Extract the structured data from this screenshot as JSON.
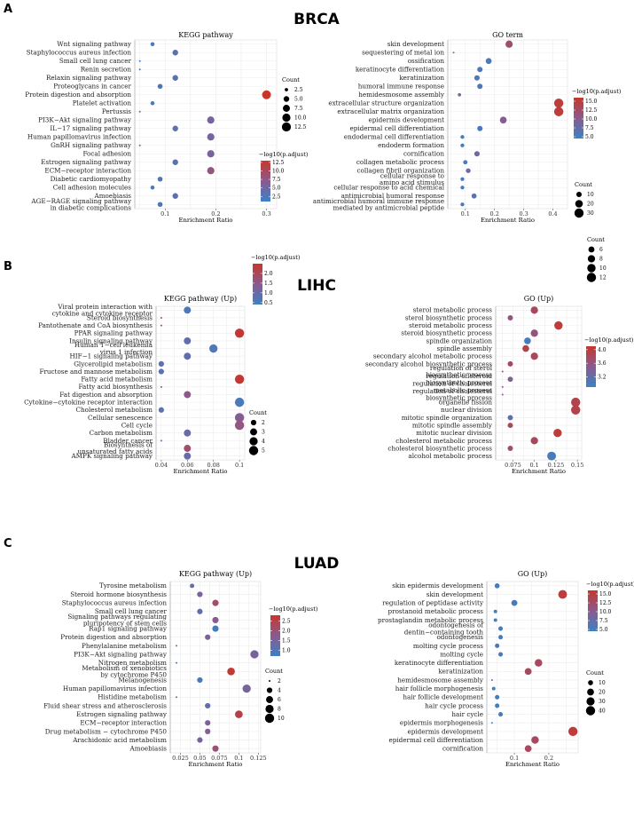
{
  "panels": [
    {
      "letter": "A",
      "title": "BRCA"
    },
    {
      "letter": "B",
      "title": "LIHC"
    },
    {
      "letter": "C",
      "title": "LUAD"
    }
  ],
  "legend": {
    "color_title": "−log10(p.adjust)",
    "size_title": "Count"
  },
  "colors": {
    "low": "#3a82c4",
    "mid": "#8a5a8f",
    "high": "#c8362a"
  },
  "chart_data": [
    {
      "type": "scatter",
      "panel": "A",
      "title": "KEGG pathway",
      "xlabel": "Enrichment Ratio",
      "xlim": [
        0.04,
        0.32
      ],
      "xticks": [
        0.1,
        0.2,
        0.3
      ],
      "categories": [
        "Wnt signaling pathway",
        "Staphylococcus aureus infection",
        "Small cell lung cancer",
        "Renin secretion",
        "Relaxin signaling pathway",
        "Proteoglycans in cancer",
        "Protein digestion and absorption",
        "Platelet activation",
        "Pertussis",
        "PI3K−Akt signaling pathway",
        "IL−17 signaling pathway",
        "Human papillomavirus infection",
        "GnRH signaling pathway",
        "Focal adhesion",
        "Estrogen signaling pathway",
        "ECM−receptor interaction",
        "Diabetic cardiomyopathy",
        "Cell adhesion molecules",
        "Amoebiasis",
        "AGE−RAGE signaling pathway in diabetic complications"
      ],
      "x": [
        0.075,
        0.12,
        0.05,
        0.05,
        0.12,
        0.09,
        0.3,
        0.075,
        0.05,
        0.19,
        0.12,
        0.19,
        0.05,
        0.19,
        0.12,
        0.19,
        0.09,
        0.075,
        0.12,
        0.09
      ],
      "count": [
        3,
        5,
        2,
        2,
        5,
        4,
        12,
        3,
        2,
        8,
        5,
        8,
        2,
        8,
        5,
        8,
        4,
        3,
        5,
        4
      ],
      "color_value": [
        2.0,
        3.5,
        1.2,
        1.2,
        3.5,
        2.8,
        13.0,
        2.0,
        1.2,
        5.5,
        3.5,
        5.5,
        1.2,
        5.5,
        3.5,
        8.0,
        2.8,
        2.0,
        3.5,
        2.8
      ],
      "size_legend": {
        "values": [
          2.5,
          5.0,
          7.5,
          10.0,
          12.5
        ],
        "labels": [
          "2.5",
          "5.0",
          "7.5",
          "10.0",
          "12.5"
        ],
        "range": [
          2,
          13
        ]
      },
      "color_legend": {
        "range": [
          1,
          13
        ],
        "ticks": [
          2.5,
          5.0,
          7.5,
          10.0,
          12.5
        ],
        "labels": [
          "2.5",
          "5.0",
          "7.5",
          "10.0",
          "12.5"
        ]
      }
    },
    {
      "type": "scatter",
      "panel": "A",
      "title": "GO term",
      "xlabel": "Enrichment Ratio",
      "xlim": [
        0.04,
        0.45
      ],
      "xticks": [
        0.1,
        0.2,
        0.3,
        0.4
      ],
      "categories": [
        "skin development",
        "sequestering of metal ion",
        "ossification",
        "keratinocyte differentiation",
        "keratinization",
        "humoral immune response",
        "hemidesmosome assembly",
        "extracellular structure organization",
        "extracellular matrix organization",
        "epidermis development",
        "epidermal cell differentiation",
        "endodermal cell differentiation",
        "endoderm formation",
        "cornification",
        "collagen metabolic process",
        "collagen fibril organization",
        "cellular response to amino acid stimulus",
        "cellular response to acid chemical",
        "antimicrobial humoral response",
        "antimicrobial humoral immune response mediated by antimicrobial peptide"
      ],
      "x": [
        0.25,
        0.06,
        0.18,
        0.15,
        0.14,
        0.15,
        0.08,
        0.42,
        0.42,
        0.23,
        0.15,
        0.09,
        0.09,
        0.14,
        0.1,
        0.11,
        0.09,
        0.09,
        0.13,
        0.09
      ],
      "count": [
        18,
        4,
        12,
        10,
        10,
        10,
        5,
        30,
        30,
        16,
        10,
        6,
        6,
        10,
        7,
        8,
        6,
        6,
        9,
        6
      ],
      "color_value": [
        12,
        5.5,
        6,
        6,
        6,
        6,
        8,
        15,
        15,
        10,
        5.5,
        5.5,
        5.5,
        8,
        5.5,
        8,
        5.5,
        5.5,
        7,
        6
      ],
      "size_legend": {
        "values": [
          10,
          20,
          30
        ],
        "labels": [
          "10",
          "20",
          "30"
        ],
        "range": [
          4,
          30
        ]
      },
      "color_legend": {
        "range": [
          4.5,
          16
        ],
        "ticks": [
          5.0,
          7.5,
          10.0,
          12.5,
          15.0
        ],
        "labels": [
          "5.0",
          "7.5",
          "10.0",
          "12.5",
          "15.0"
        ]
      }
    },
    {
      "type": "scatter",
      "panel": "B",
      "title": "KEGG pathway (Up)",
      "xlabel": "Enrichment Ratio",
      "xlim": [
        0.036,
        0.104
      ],
      "xticks": [
        0.04,
        0.06,
        0.08,
        0.1
      ],
      "categories": [
        "Viral protein interaction with cytokine and cytokine receptor",
        "Steroid biosynthesis",
        "Pantothenate and CoA biosynthesis",
        "PPAR signaling pathway",
        "Insulin signaling pathway",
        "Human T−cell leukemia virus 1 infection",
        "HIF−1 signaling pathway",
        "Glycerolipid metabolism",
        "Fructose and mannose metabolism",
        "Fatty acid metabolism",
        "Fatty acid biosynthesis",
        "Fat digestion and absorption",
        "Cytokine−cytokine receptor interaction",
        "Cholesterol metabolism",
        "Cellular senescence",
        "Cell cycle",
        "Carbon metabolism",
        "Bladder cancer",
        "Biosynthesis of unsaturated fatty acids",
        "AMPK signaling pathway"
      ],
      "x": [
        0.06,
        0.04,
        0.04,
        0.1,
        0.06,
        0.08,
        0.06,
        0.04,
        0.04,
        0.1,
        0.04,
        0.06,
        0.1,
        0.04,
        0.1,
        0.1,
        0.06,
        0.04,
        0.06,
        0.06
      ],
      "count": [
        3,
        1,
        1,
        5,
        3,
        4,
        3,
        2,
        2,
        5,
        1,
        3,
        5,
        2,
        5,
        5,
        3,
        1,
        3,
        3
      ],
      "color_value": [
        0.7,
        1.5,
        1.5,
        2.4,
        0.9,
        0.7,
        0.9,
        0.8,
        0.8,
        2.4,
        1.5,
        1.5,
        0.6,
        0.8,
        1.4,
        1.6,
        1.0,
        0.7,
        1.8,
        1.0
      ],
      "size_legend": {
        "values": [
          2,
          3,
          4,
          5
        ],
        "labels": [
          "2",
          "3",
          "4",
          "5"
        ],
        "range": [
          1,
          5
        ]
      },
      "color_legend": {
        "range": [
          0.4,
          2.5
        ],
        "ticks": [
          0.5,
          1.0,
          1.5,
          2.0
        ],
        "labels": [
          "0.5",
          "1.0",
          "1.5",
          "2.0"
        ]
      }
    },
    {
      "type": "scatter",
      "panel": "B",
      "title": "GO (Up)",
      "xlabel": "Enrichment Ratio",
      "xlim": [
        0.055,
        0.155
      ],
      "xticks": [
        0.075,
        0.1,
        0.125,
        0.15
      ],
      "categories": [
        "sterol metabolic process",
        "sterol biosynthetic process",
        "steroid metabolic process",
        "steroid biosynthetic process",
        "spindle organization",
        "spindle assembly",
        "secondary alcohol metabolic process",
        "secondary alcohol biosynthetic process",
        "regulation of sterol biosynthetic process",
        "regulation of steroid biosynthetic process",
        "regulation of cholesterol metabolic process",
        "regulation of cholesterol biosynthetic process",
        "organelle fission",
        "nuclear division",
        "mitotic spindle organization",
        "mitotic spindle assembly",
        "mitotic nuclear division",
        "cholesterol metabolic process",
        "cholesterol biosynthetic process",
        "alcohol metabolic process"
      ],
      "x": [
        0.1,
        0.072,
        0.128,
        0.1,
        0.092,
        0.09,
        0.1,
        0.072,
        0.063,
        0.072,
        0.063,
        0.063,
        0.148,
        0.148,
        0.072,
        0.072,
        0.127,
        0.1,
        0.072,
        0.12
      ],
      "count": [
        8,
        5,
        10,
        8,
        7,
        7,
        8,
        5,
        3,
        5,
        3,
        3,
        12,
        12,
        5,
        5,
        10,
        8,
        5,
        11
      ],
      "color_value": [
        3.8,
        3.6,
        4.0,
        3.6,
        3.0,
        3.9,
        3.8,
        3.8,
        3.5,
        3.4,
        3.5,
        3.5,
        3.9,
        3.9,
        3.2,
        3.8,
        4.0,
        3.8,
        3.7,
        3.0
      ],
      "size_legend": {
        "values": [
          6,
          8,
          10,
          12
        ],
        "labels": [
          "6",
          "8",
          "10",
          "12"
        ],
        "range": [
          3,
          12
        ]
      },
      "color_legend": {
        "range": [
          2.9,
          4.1
        ],
        "ticks": [
          3.2,
          3.6,
          4.0
        ],
        "labels": [
          "3.2",
          "3.6",
          "4.0"
        ]
      }
    },
    {
      "type": "scatter",
      "panel": "C",
      "title": "KEGG pathway (Up)",
      "xlabel": "Enrichment Ratio",
      "xlim": [
        0.012,
        0.128
      ],
      "xticks": [
        0.025,
        0.05,
        0.075,
        0.1,
        0.125
      ],
      "categories": [
        "Tyrosine metabolism",
        "Steroid hormone biosynthesis",
        "Staphylococcus aureus infection",
        "Small cell lung cancer",
        "Signaling pathways regulating pluripotency of stem cells",
        "Rap1 signaling pathway",
        "Protein digestion and absorption",
        "Phenylalanine metabolism",
        "PI3K−Akt signaling pathway",
        "Nitrogen metabolism",
        "Metabolism of xenobiotics by cytochrome P450",
        "Melanogenesis",
        "Human papillomavirus infection",
        "Histidine metabolism",
        "Fluid shear stress and atherosclerosis",
        "Estrogen signaling pathway",
        "ECM−receptor interaction",
        "Drug metabolism − cytochrome P450",
        "Arachidonic acid metabolism",
        "Amoebiasis"
      ],
      "x": [
        0.04,
        0.05,
        0.07,
        0.05,
        0.07,
        0.07,
        0.06,
        0.02,
        0.12,
        0.02,
        0.09,
        0.05,
        0.11,
        0.02,
        0.06,
        0.1,
        0.06,
        0.06,
        0.05,
        0.07
      ],
      "count": [
        3,
        4,
        5,
        4,
        5,
        5,
        4,
        2,
        8,
        2,
        7,
        4,
        8,
        2,
        4,
        7,
        4,
        4,
        4,
        5
      ],
      "color_value": [
        1.3,
        1.5,
        2.1,
        1.2,
        1.7,
        0.8,
        1.6,
        0.9,
        1.5,
        0.9,
        2.7,
        0.9,
        1.5,
        0.9,
        1.2,
        2.5,
        1.6,
        1.6,
        1.5,
        2.0
      ],
      "size_legend": {
        "values": [
          2,
          4,
          6,
          8,
          10
        ],
        "labels": [
          "2",
          "4",
          "6",
          "8",
          "10"
        ],
        "range": [
          2,
          10
        ]
      },
      "color_legend": {
        "range": [
          0.7,
          2.8
        ],
        "ticks": [
          1.0,
          1.5,
          2.0,
          2.5
        ],
        "labels": [
          "1.0",
          "1.5",
          "2.0",
          "2.5"
        ]
      }
    },
    {
      "type": "scatter",
      "panel": "C",
      "title": "GO (Up)",
      "xlabel": "Enrichment Ratio",
      "xlim": [
        0.02,
        0.285
      ],
      "xticks": [
        0.1,
        0.2
      ],
      "categories": [
        "skin epidermis development",
        "skin development",
        "regulation of peptidase activity",
        "prostanoid metabolic process",
        "prostaglandin metabolic process",
        "odontogenesis of dentin−containing tooth",
        "odontogenesis",
        "molting cycle process",
        "molting cycle",
        "keratinocyte differentiation",
        "keratinization",
        "hemidesmosome assembly",
        "hair follicle morphogenesis",
        "hair follicle development",
        "hair cycle process",
        "hair cycle",
        "epidermis morphogenesis",
        "epidermis development",
        "epidermal cell differentiation",
        "cornification"
      ],
      "x": [
        0.05,
        0.24,
        0.1,
        0.045,
        0.045,
        0.06,
        0.06,
        0.05,
        0.06,
        0.17,
        0.14,
        0.035,
        0.04,
        0.05,
        0.05,
        0.06,
        0.035,
        0.27,
        0.16,
        0.14
      ],
      "count": [
        10,
        35,
        15,
        5,
        5,
        8,
        8,
        8,
        8,
        25,
        20,
        3,
        5,
        8,
        8,
        8,
        3,
        40,
        25,
        20
      ],
      "color_value": [
        5,
        15,
        5.5,
        5,
        5,
        5.5,
        5.5,
        6,
        6,
        13,
        13,
        6,
        5,
        5,
        5,
        6,
        5,
        15,
        13,
        13
      ],
      "size_legend": {
        "values": [
          10,
          20,
          30,
          40
        ],
        "labels": [
          "10",
          "20",
          "30",
          "40"
        ],
        "range": [
          3,
          40
        ]
      },
      "color_legend": {
        "range": [
          4.5,
          16
        ],
        "ticks": [
          5.0,
          7.5,
          10.0,
          12.5,
          15.0
        ],
        "labels": [
          "5.0",
          "7.5",
          "10.0",
          "12.5",
          "15.0"
        ]
      }
    }
  ]
}
